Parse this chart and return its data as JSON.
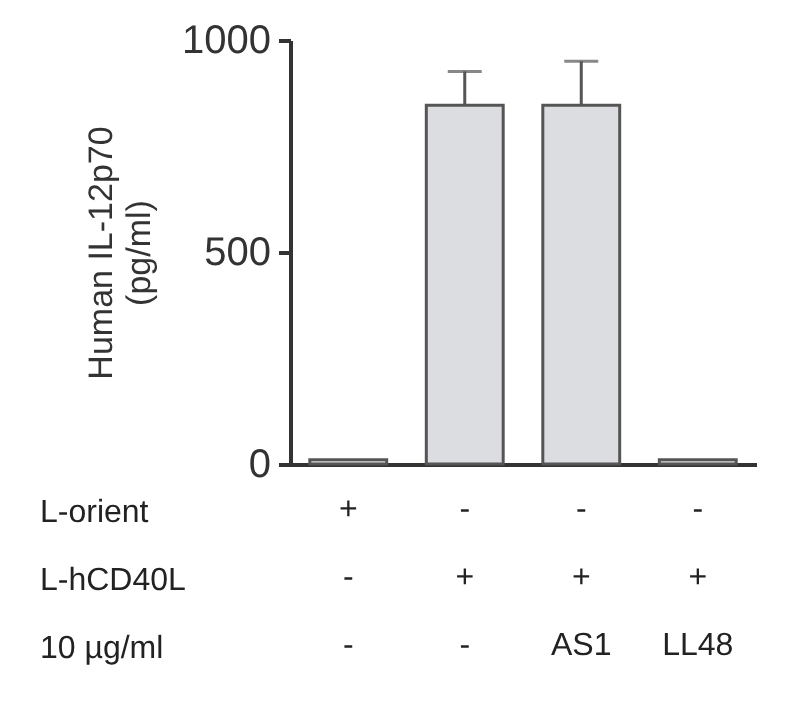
{
  "chart_data": {
    "type": "bar",
    "ylabel": "Human IL-12p70\n(pg/ml)",
    "categories": [
      "+\n-\n-",
      "-\n+\n-",
      "-\n+\nAS1",
      "-\n+\nLL48"
    ],
    "values": [
      10,
      846,
      846,
      10
    ],
    "errors": [
      null,
      [
        846,
        926
      ],
      [
        846,
        950
      ],
      null
    ],
    "color": "#dcdde0",
    "ylim": [
      0,
      1000
    ],
    "yticks": [
      0,
      500,
      1000
    ],
    "annotations": [
      "L-orient",
      "L-hCD40L",
      "10 µg/ml"
    ],
    "grid": false
  }
}
